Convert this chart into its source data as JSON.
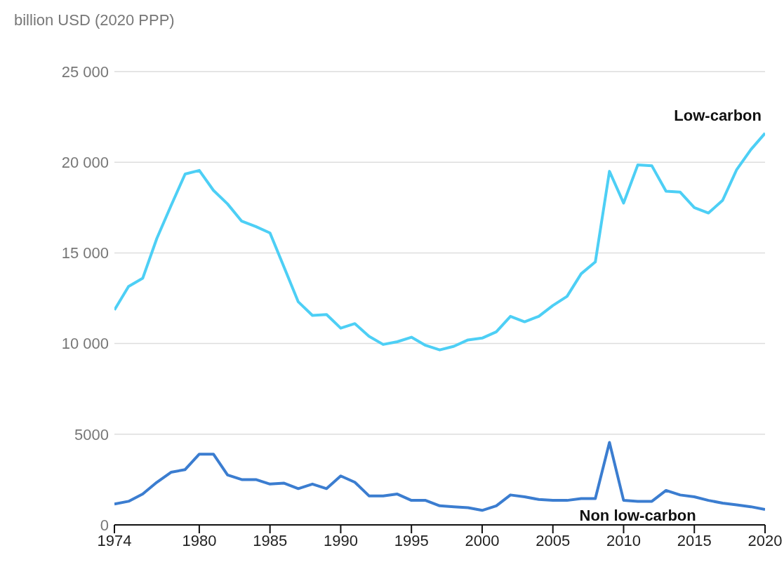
{
  "chart_data": {
    "type": "line",
    "ylabel": "billion USD (2020 PPP)",
    "x": [
      1974,
      1975,
      1976,
      1977,
      1978,
      1979,
      1980,
      1981,
      1982,
      1983,
      1984,
      1985,
      1986,
      1987,
      1988,
      1989,
      1990,
      1991,
      1992,
      1993,
      1994,
      1995,
      1996,
      1997,
      1998,
      1999,
      2000,
      2001,
      2002,
      2003,
      2004,
      2005,
      2006,
      2007,
      2008,
      2009,
      2010,
      2011,
      2012,
      2013,
      2014,
      2015,
      2016,
      2017,
      2018,
      2019,
      2020
    ],
    "series": [
      {
        "name": "Low-carbon",
        "color": "#4dcff5",
        "values": [
          11850,
          13150,
          13600,
          15800,
          17600,
          19350,
          19550,
          18450,
          17700,
          16750,
          16450,
          16100,
          14200,
          12300,
          11550,
          11600,
          10850,
          11100,
          10400,
          9950,
          10100,
          10350,
          9900,
          9650,
          9850,
          10200,
          10300,
          10650,
          11500,
          11200,
          11500,
          12100,
          12600,
          13850,
          14500,
          19500,
          17750,
          19850,
          19800,
          18400,
          18350,
          17500,
          17200,
          17900,
          19600,
          20700,
          21600
        ]
      },
      {
        "name": "Non low-carbon",
        "color": "#3b7dd0",
        "values": [
          1150,
          1300,
          1700,
          2350,
          2900,
          3050,
          3900,
          3900,
          2750,
          2500,
          2500,
          2250,
          2300,
          2000,
          2250,
          2000,
          2700,
          2350,
          1600,
          1600,
          1700,
          1350,
          1350,
          1050,
          1000,
          950,
          800,
          1050,
          1650,
          1550,
          1400,
          1350,
          1350,
          1450,
          1450,
          4550,
          1350,
          1300,
          1300,
          1900,
          1650,
          1550,
          1350,
          1200,
          1100,
          1000,
          850
        ]
      }
    ],
    "xlim": [
      1974,
      2020
    ],
    "xticks": [
      1974,
      1980,
      1985,
      1990,
      1995,
      2000,
      2005,
      2010,
      2015,
      2020
    ],
    "ylim": [
      0,
      25000
    ],
    "yticks": [
      0,
      5000,
      {
        "value": 10000,
        "label": "10 000"
      },
      {
        "value": 15000,
        "label": "15 000"
      },
      {
        "value": 20000,
        "label": "20 000"
      },
      {
        "value": 25000,
        "label": "25 000"
      }
    ],
    "grid": "y",
    "marker": "none",
    "line_style": "solid"
  }
}
